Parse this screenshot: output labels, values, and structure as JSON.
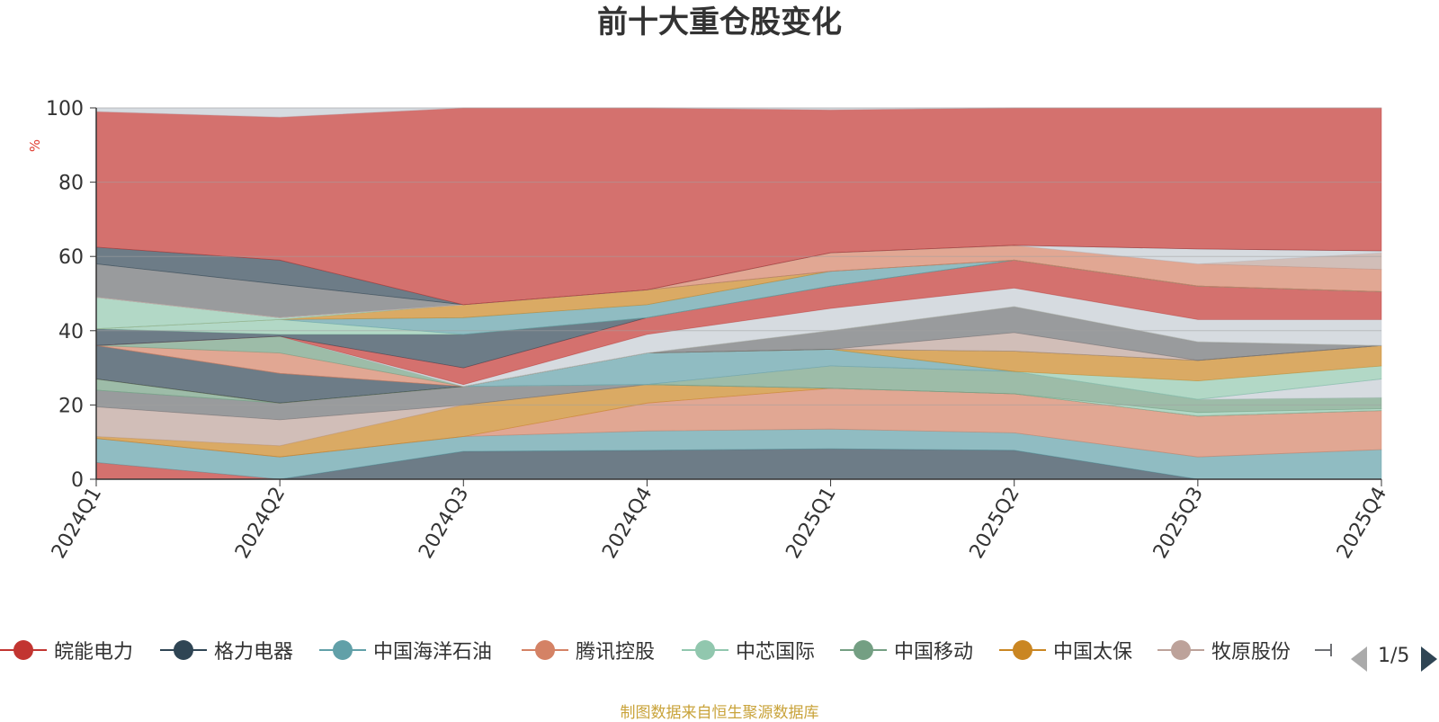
{
  "chart_data": {
    "type": "area",
    "title": "前十大重仓股变化",
    "ylabel": "%",
    "ylim": [
      0,
      100
    ],
    "yticks": [
      0,
      20,
      40,
      60,
      80,
      100
    ],
    "categories": [
      "2024Q1",
      "2024Q2",
      "2024Q3",
      "2024Q4",
      "2025Q1",
      "2025Q2",
      "2025Q3",
      "2025Q4"
    ],
    "series": [
      {
        "name": "皖能电力",
        "color": "#c23531",
        "values": [
          0,
          0,
          0,
          0,
          0,
          0,
          0,
          0
        ]
      },
      {
        "name": "格力电器",
        "color": "#2f4554",
        "values": [
          0,
          0,
          0,
          0,
          0,
          0,
          0,
          0
        ]
      },
      {
        "name": "中国海洋石油",
        "color": "#61a0a8",
        "values": [
          0,
          0,
          0,
          0,
          0,
          0,
          0,
          0
        ]
      },
      {
        "name": "腾讯控股",
        "color": "#d48265",
        "values": [
          0,
          0,
          0,
          0,
          0,
          0,
          0,
          0
        ]
      },
      {
        "name": "中芯国际",
        "color": "#91c7ae",
        "values": [
          0,
          0,
          0,
          0,
          0,
          0,
          0,
          0
        ]
      },
      {
        "name": "中国移动",
        "color": "#749f83",
        "values": [
          0,
          0,
          0,
          0,
          0,
          0,
          0,
          0
        ]
      },
      {
        "name": "中国太保",
        "color": "#ca8622",
        "values": [
          0,
          0,
          0,
          0,
          0,
          0,
          0,
          0
        ]
      },
      {
        "name": "牧原股份",
        "color": "#bda29a",
        "values": [
          0,
          0,
          0,
          0,
          0,
          0,
          0,
          0
        ]
      }
    ],
    "bands": [
      {
        "color": "#c23531",
        "lo": [
          0,
          0,
          0,
          0,
          0,
          0,
          0,
          0
        ],
        "hi": [
          4.5,
          0,
          0,
          0,
          0,
          0,
          0,
          0
        ]
      },
      {
        "color": "#2f4554",
        "lo": [
          0,
          0,
          0,
          0,
          0,
          0,
          0,
          0
        ],
        "hi": [
          0,
          0,
          7.5,
          7.8,
          8.2,
          7.8,
          0,
          0
        ]
      },
      {
        "color": "#61a0a8",
        "lo": [
          4.5,
          0,
          7.5,
          7.8,
          8.2,
          7.8,
          0,
          0
        ],
        "hi": [
          11,
          6,
          11.5,
          13,
          13.5,
          12.5,
          6,
          8
        ]
      },
      {
        "color": "#d48265",
        "lo": [
          11,
          6,
          11.5,
          13,
          13.5,
          12.5,
          6,
          8
        ],
        "hi": [
          11,
          6,
          11.5,
          20.5,
          24.5,
          23,
          17,
          18.5
        ]
      },
      {
        "color": "#ca8622",
        "lo": [
          11,
          6,
          11.5,
          20.5,
          24.5,
          23,
          17,
          18.5
        ],
        "hi": [
          11.5,
          9,
          20,
          25.5,
          24.5,
          23,
          17,
          18.5
        ]
      },
      {
        "color": "#bda29a",
        "lo": [
          11.5,
          9,
          20,
          25.5,
          24.5,
          23,
          17,
          18.5
        ],
        "hi": [
          19.5,
          16,
          20,
          25.5,
          24.5,
          23,
          17,
          18.5
        ]
      },
      {
        "color": "#6e7074",
        "lo": [
          19.5,
          16,
          20,
          25.5,
          24.5,
          23,
          17,
          18.5
        ],
        "hi": [
          24,
          20.5,
          25,
          25.5,
          24.5,
          23,
          17,
          18.5
        ]
      },
      {
        "color": "#91c7ae",
        "lo": [
          24,
          20.5,
          25,
          25.5,
          24.5,
          23,
          17,
          18.5
        ],
        "hi": [
          24,
          20.5,
          25,
          25.5,
          24.5,
          23,
          18,
          19
        ]
      },
      {
        "color": "#749f83",
        "lo": [
          24,
          20.5,
          25,
          25.5,
          24.5,
          23,
          18,
          19
        ],
        "hi": [
          27,
          20.5,
          25,
          25.5,
          30.5,
          29,
          21.5,
          22
        ]
      },
      {
        "color": "#c4ccd3",
        "lo": [
          27,
          20.5,
          25,
          25.5,
          30.5,
          29,
          21.5,
          22
        ],
        "hi": [
          27,
          20.5,
          25,
          25.5,
          30.5,
          29,
          21.5,
          27
        ]
      },
      {
        "color": "#61a0a8",
        "lo": [
          27,
          20.5,
          25,
          25.5,
          30.5,
          29,
          21.5,
          27
        ],
        "hi": [
          27,
          20.5,
          25,
          34,
          35,
          29,
          21.5,
          27
        ]
      },
      {
        "color": "#91c7ae",
        "lo": [
          27,
          20.5,
          25,
          34,
          35,
          29,
          21.5,
          27
        ],
        "hi": [
          27,
          20.5,
          25,
          34,
          35,
          29,
          26.5,
          30.5
        ]
      },
      {
        "color": "#ca8622",
        "lo": [
          27,
          20.5,
          25,
          34,
          35,
          29,
          26.5,
          30.5
        ],
        "hi": [
          27,
          20.5,
          25,
          34,
          35,
          34.5,
          32,
          36
        ]
      },
      {
        "color": "#2f4554",
        "lo": [
          27,
          20.5,
          25,
          34,
          35,
          34.5,
          32,
          36
        ],
        "hi": [
          36,
          28.5,
          25,
          34,
          35,
          34.5,
          32,
          36
        ]
      },
      {
        "color": "#bda29a",
        "lo": [
          36,
          28.5,
          25,
          34,
          35,
          34.5,
          32,
          36
        ],
        "hi": [
          36,
          28.5,
          25,
          34,
          35,
          39.5,
          32,
          36
        ]
      },
      {
        "color": "#6e7074",
        "lo": [
          36,
          28.5,
          25,
          34,
          35,
          39.5,
          32,
          36
        ],
        "hi": [
          36,
          28.5,
          25,
          34,
          40,
          46.5,
          37,
          36
        ]
      },
      {
        "color": "#d48265",
        "lo": [
          36,
          28.5,
          25,
          34,
          40,
          46.5,
          37,
          36
        ],
        "hi": [
          36,
          34,
          25,
          34,
          40,
          46.5,
          37,
          36
        ]
      },
      {
        "color": "#749f83",
        "lo": [
          36,
          34,
          25,
          34,
          40,
          46.5,
          37,
          36
        ],
        "hi": [
          36,
          38.5,
          25,
          34,
          40,
          46.5,
          37,
          36
        ]
      },
      {
        "color": "#c4ccd3",
        "lo": [
          36,
          38.5,
          25,
          34,
          40,
          46.5,
          37,
          36
        ],
        "hi": [
          36,
          38.5,
          25.5,
          39,
          46,
          51.5,
          43,
          43
        ]
      },
      {
        "color": "#c23531",
        "lo": [
          36,
          38.5,
          25.5,
          39,
          46,
          51.5,
          43,
          43
        ],
        "hi": [
          36,
          38.5,
          30,
          43.5,
          52,
          59,
          52,
          50.5
        ]
      },
      {
        "color": "#2f4554",
        "lo": [
          36,
          38.5,
          30,
          43.5,
          52,
          59,
          52,
          50.5
        ],
        "hi": [
          40.5,
          39,
          39,
          43.5,
          52,
          59,
          52,
          50.5
        ]
      },
      {
        "color": "#91c7ae",
        "lo": [
          40.5,
          39,
          39,
          43.5,
          52,
          59,
          52,
          50.5
        ],
        "hi": [
          40.5,
          43,
          39,
          43.5,
          52,
          59,
          52,
          50.5
        ]
      },
      {
        "color": "#61a0a8",
        "lo": [
          40.5,
          43,
          39,
          43.5,
          52,
          59,
          52,
          50.5
        ],
        "hi": [
          40.5,
          43,
          43.5,
          47,
          56,
          59,
          52,
          50.5
        ]
      },
      {
        "color": "#ca8622",
        "lo": [
          40.5,
          43,
          43.5,
          47,
          56,
          59,
          52,
          50.5
        ],
        "hi": [
          40.5,
          43,
          47,
          51,
          56,
          59,
          52,
          50.5
        ]
      },
      {
        "color": "#91c7ae",
        "lo": [
          40.5,
          43,
          47,
          51,
          56,
          59,
          52,
          50.5
        ],
        "hi": [
          49,
          43.5,
          47,
          51,
          56,
          59,
          52,
          50.5
        ]
      },
      {
        "color": "#6e7074",
        "lo": [
          49,
          43.5,
          47,
          51,
          56,
          59,
          52,
          50.5
        ],
        "hi": [
          58,
          52.5,
          47,
          51,
          56,
          59,
          52,
          50.5
        ]
      },
      {
        "color": "#d48265",
        "lo": [
          49,
          43.5,
          47,
          51,
          56,
          59,
          52,
          50.5
        ],
        "hi": [
          49,
          43.5,
          47,
          51,
          61,
          63,
          58,
          56.5
        ]
      },
      {
        "color": "#bda29a",
        "lo": [
          49,
          43.5,
          47,
          51,
          61,
          63,
          58,
          56.5
        ],
        "hi": [
          49,
          43.5,
          47,
          51,
          61,
          63,
          58,
          61
        ]
      },
      {
        "color": "#c4ccd3",
        "lo": [
          49,
          43.5,
          47,
          51,
          61,
          63,
          58,
          61
        ],
        "hi": [
          49,
          43.5,
          47,
          51,
          61,
          63,
          62,
          61.5
        ]
      },
      {
        "color": "#2f4554",
        "lo": [
          58,
          52.5,
          47,
          51,
          61,
          63,
          62,
          61.5
        ],
        "hi": [
          62.5,
          59,
          47,
          51,
          61,
          63,
          62,
          61.5
        ]
      },
      {
        "color": "#c23531",
        "lo": [
          62.5,
          59,
          47,
          51,
          61,
          63,
          62,
          61.5
        ],
        "hi": [
          99,
          97.5,
          100,
          100,
          99.5,
          100,
          100,
          100
        ]
      },
      {
        "color": "#c4ccd3",
        "lo": [
          99,
          97.5,
          100,
          100,
          99.5,
          100,
          100,
          100
        ],
        "hi": [
          100,
          100,
          100,
          100,
          100,
          100,
          100,
          100
        ]
      }
    ],
    "legend_position": "bottom",
    "pager": "1/5",
    "source": "制图数据来自恒生聚源数据库"
  }
}
